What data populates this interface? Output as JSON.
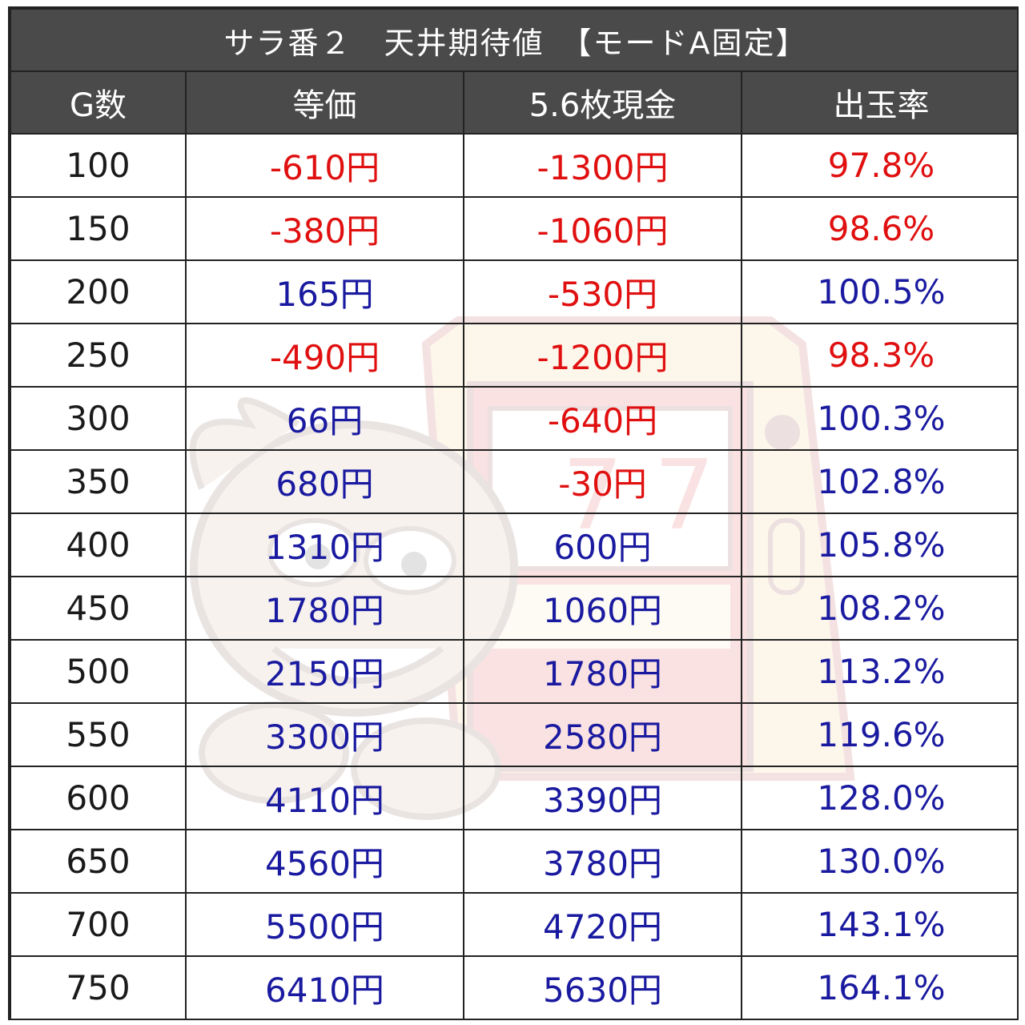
{
  "title": "サラ番２　天井期待値　【モードA固定】",
  "headers": [
    "G数",
    "等価",
    "5.6枚現金",
    "出玉率"
  ],
  "rows": [
    {
      "g": "100",
      "tohka": "-610円",
      "cash": "-1300円",
      "rate": "97.8%"
    },
    {
      "g": "150",
      "tohka": "-380円",
      "cash": "-1060円",
      "rate": "98.6%"
    },
    {
      "g": "200",
      "tohka": "165円",
      "cash": "-530円",
      "rate": "100.5%"
    },
    {
      "g": "250",
      "tohka": "-490円",
      "cash": "-1200円",
      "rate": "98.3%"
    },
    {
      "g": "300",
      "tohka": "66円",
      "cash": "-640円",
      "rate": "100.3%"
    },
    {
      "g": "350",
      "tohka": "680円",
      "cash": "-30円",
      "rate": "102.8%"
    },
    {
      "g": "400",
      "tohka": "1310円",
      "cash": "600円",
      "rate": "105.8%"
    },
    {
      "g": "450",
      "tohka": "1780円",
      "cash": "1060円",
      "rate": "108.2%"
    },
    {
      "g": "500",
      "tohka": "2150円",
      "cash": "1780円",
      "rate": "113.2%"
    },
    {
      "g": "550",
      "tohka": "3300円",
      "cash": "2580円",
      "rate": "119.6%"
    },
    {
      "g": "600",
      "tohka": "4110円",
      "cash": "3390円",
      "rate": "128.0%"
    },
    {
      "g": "650",
      "tohka": "4560円",
      "cash": "3780円",
      "rate": "130.0%"
    },
    {
      "g": "700",
      "tohka": "5500円",
      "cash": "4720円",
      "rate": "143.1%"
    },
    {
      "g": "750",
      "tohka": "6410円",
      "cash": "5630円",
      "rate": "164.1%"
    }
  ],
  "colors": {
    "header_bg": "#4a4a4a",
    "header_text": "#ffffff",
    "negative": "#e01010",
    "positive": "#1a1aa0",
    "g_text": "#1a1a1a"
  },
  "watermark_icon": "slot-machine-mascot-icon"
}
